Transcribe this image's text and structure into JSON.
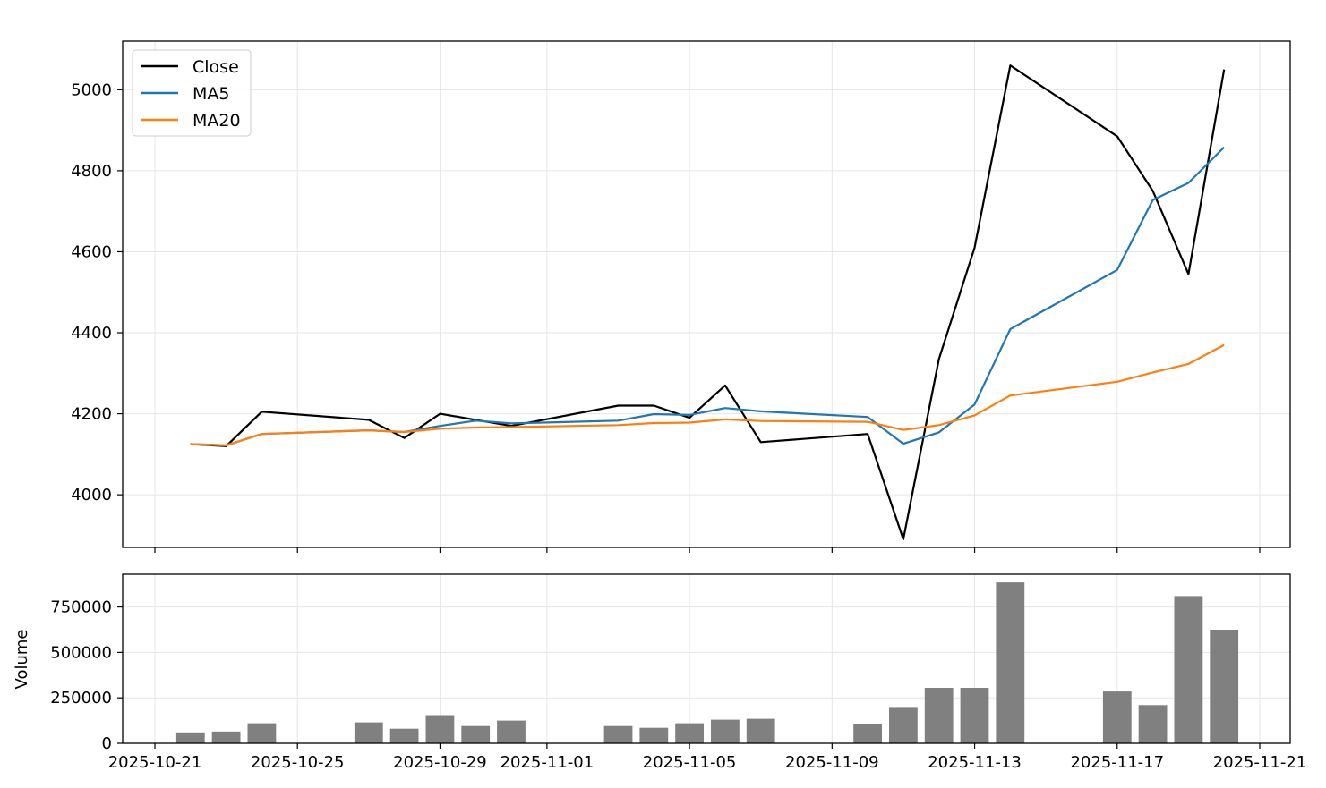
{
  "chart_data": [
    {
      "type": "line",
      "title": "",
      "xlabel": "",
      "ylabel": "",
      "x": [
        "2025-10-22",
        "2025-10-23",
        "2025-10-24",
        "2025-10-27",
        "2025-10-28",
        "2025-10-29",
        "2025-10-30",
        "2025-10-31",
        "2025-11-03",
        "2025-11-04",
        "2025-11-05",
        "2025-11-06",
        "2025-11-07",
        "2025-11-10",
        "2025-11-11",
        "2025-11-12",
        "2025-11-13",
        "2025-11-14",
        "2025-11-17",
        "2025-11-18",
        "2025-11-19",
        "2025-11-20"
      ],
      "series": [
        {
          "name": "Close",
          "color": "#000000",
          "values": [
            4125,
            4120,
            4205,
            4185,
            4140,
            4200,
            4185,
            4170,
            4220,
            4220,
            4190,
            4270,
            4130,
            4150,
            3890,
            4335,
            4610,
            5060,
            4885,
            4750,
            4545,
            5050
          ]
        },
        {
          "name": "MA5",
          "color": "#1f77b4",
          "values": [
            4125,
            4122,
            4150,
            4159,
            4155,
            4170,
            4183,
            4176,
            4183,
            4199,
            4197,
            4214,
            4206,
            4192,
            4126,
            4154,
            4223,
            4409,
            4555,
            4728,
            4770,
            4858
          ]
        },
        {
          "name": "MA20",
          "color": "#ff7f0e",
          "values": [
            4125,
            4122,
            4150,
            4159,
            4155,
            4163,
            4166,
            4167,
            4172,
            4177,
            4178,
            4186,
            4182,
            4180,
            4160,
            4172,
            4196,
            4245,
            4279,
            4302,
            4323,
            4370
          ]
        }
      ],
      "yticks": [
        "4000",
        "4200",
        "4400",
        "4600",
        "4800",
        "5000"
      ],
      "ylim": [
        3870,
        5120
      ],
      "grid": true,
      "legend": "top-left"
    },
    {
      "type": "bar",
      "ylabel": "Volume",
      "color": "#808080",
      "x": [
        "2025-10-22",
        "2025-10-23",
        "2025-10-24",
        "2025-10-27",
        "2025-10-28",
        "2025-10-29",
        "2025-10-30",
        "2025-10-31",
        "2025-11-03",
        "2025-11-04",
        "2025-11-05",
        "2025-11-06",
        "2025-11-07",
        "2025-11-10",
        "2025-11-11",
        "2025-11-12",
        "2025-11-13",
        "2025-11-14",
        "2025-11-17",
        "2025-11-18",
        "2025-11-19",
        "2025-11-20"
      ],
      "values": [
        60000,
        65000,
        110000,
        115000,
        80000,
        155000,
        95000,
        125000,
        95000,
        85000,
        110000,
        130000,
        135000,
        105000,
        200000,
        305000,
        305000,
        885000,
        285000,
        210000,
        810000,
        625000
      ],
      "yticks": [
        "0",
        "250000",
        "500000",
        "750000"
      ],
      "ylim": [
        0,
        930000
      ],
      "grid": true
    }
  ],
  "xticks": [
    "2025-10-21",
    "2025-10-25",
    "2025-10-29",
    "2025-11-01",
    "2025-11-05",
    "2025-11-09",
    "2025-11-13",
    "2025-11-17",
    "2025-11-21"
  ],
  "xlim": [
    "2025-10-20",
    "2025-11-21"
  ]
}
